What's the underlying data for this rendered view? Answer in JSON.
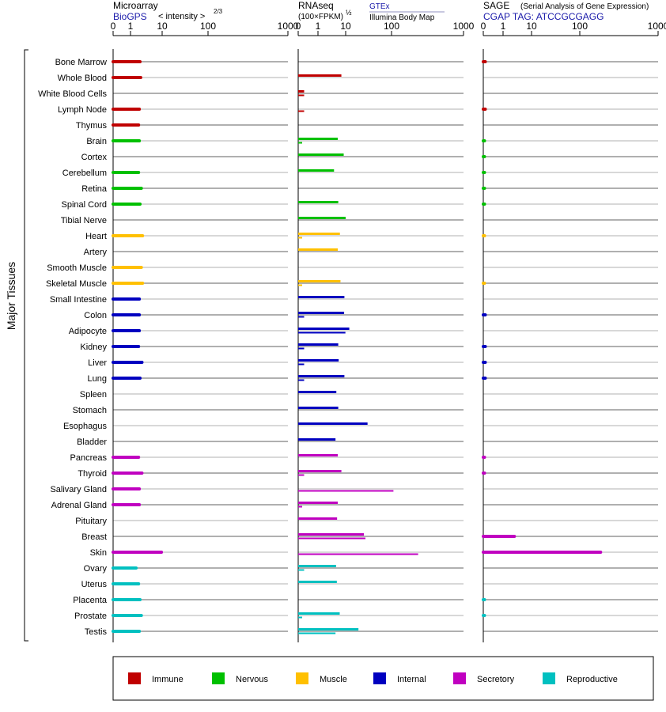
{
  "panels": [
    {
      "title": "Microarray",
      "subtitle": "BioGPS",
      "unit": "< intensity >",
      "unit_exp": "2/3",
      "x_ticks": [
        "0",
        "1",
        "10",
        "100",
        "1000"
      ]
    },
    {
      "title": "RNAseq",
      "unit": "(100×FPKM)",
      "unit_exp": "½",
      "source_top": "GTEx",
      "source_bottom": "Illumina Body Map",
      "x_ticks": [
        "0",
        "1",
        "10",
        "100",
        "1000"
      ]
    },
    {
      "title": "SAGE",
      "title_note": "(Serial Analysis of Gene Expression)",
      "subtitle": "CGAP TAG: ATCCGCGAGG",
      "x_ticks": [
        "0",
        "1",
        "10",
        "100",
        "1000"
      ]
    }
  ],
  "y_axis_label": "Major Tissues",
  "colors": {
    "Immune": "#c00000",
    "Nervous": "#00c000",
    "Muscle": "#ffc000",
    "Internal": "#0000c0",
    "Secretory": "#c000c0",
    "Reproductive": "#00c0c0"
  },
  "chart_data": {
    "type": "bar",
    "orientation": "horizontal",
    "x_scale": "log (0, 1, 10, 100, 1000)",
    "xlim": [
      0,
      1000
    ],
    "grid": true,
    "legend_position": "bottom",
    "legend": [
      "Immune",
      "Nervous",
      "Muscle",
      "Internal",
      "Secretory",
      "Reproductive"
    ],
    "categories": [
      "Bone Marrow",
      "Whole Blood",
      "White Blood Cells",
      "Lymph Node",
      "Thymus",
      "Brain",
      "Cortex",
      "Cerebellum",
      "Retina",
      "Spinal Cord",
      "Tibial Nerve",
      "Heart",
      "Artery",
      "Smooth Muscle",
      "Skeletal Muscle",
      "Small Intestine",
      "Colon",
      "Adipocyte",
      "Kidney",
      "Liver",
      "Lung",
      "Spleen",
      "Stomach",
      "Esophagus",
      "Bladder",
      "Pancreas",
      "Thyroid",
      "Salivary Gland",
      "Adrenal Gland",
      "Pituitary",
      "Breast",
      "Skin",
      "Ovary",
      "Uterus",
      "Placenta",
      "Prostate",
      "Testis"
    ],
    "groups": [
      "Immune",
      "Immune",
      "Immune",
      "Immune",
      "Immune",
      "Nervous",
      "Nervous",
      "Nervous",
      "Nervous",
      "Nervous",
      "Nervous",
      "Muscle",
      "Muscle",
      "Muscle",
      "Muscle",
      "Internal",
      "Internal",
      "Internal",
      "Internal",
      "Internal",
      "Internal",
      "Internal",
      "Internal",
      "Internal",
      "Internal",
      "Secretory",
      "Secretory",
      "Secretory",
      "Secretory",
      "Secretory",
      "Secretory",
      "Secretory",
      "Reproductive",
      "Reproductive",
      "Reproductive",
      "Reproductive",
      "Reproductive"
    ],
    "series": [
      {
        "name": "Microarray",
        "values": [
          2.0,
          2.1,
          0,
          1.9,
          1.8,
          1.9,
          0,
          1.8,
          2.2,
          2.0,
          0,
          2.4,
          0,
          2.2,
          2.4,
          1.9,
          1.9,
          1.9,
          1.8,
          2.3,
          2.0,
          0,
          0,
          0,
          0,
          1.8,
          2.3,
          1.9,
          1.9,
          0,
          0,
          9.5,
          1.5,
          1.8,
          2.0,
          2.2,
          1.9
        ]
      },
      {
        "name": "RNAseq (GTEx)",
        "values": [
          0,
          7.0,
          0.3,
          0,
          0,
          5.2,
          8.5,
          3.8,
          0,
          5.4,
          10,
          6.2,
          5.2,
          0,
          6.5,
          9.0,
          8.8,
          12,
          5.4,
          5.6,
          9.0,
          4.6,
          5.4,
          30,
          4.3,
          5.2,
          7.0,
          0,
          5.2,
          4.9,
          25,
          0,
          4.5,
          4.8,
          0,
          6.1,
          19
        ]
      },
      {
        "name": "RNAseq (Illumina Body Map)",
        "values": [
          0,
          0,
          0.3,
          0.3,
          0,
          0.2,
          0,
          0,
          0,
          0,
          0,
          0.2,
          0,
          0,
          0.2,
          0,
          0.3,
          9.8,
          0.3,
          0.3,
          0.3,
          0,
          0,
          0,
          0,
          0,
          0.3,
          110,
          0.2,
          0,
          27,
          380,
          0.3,
          0,
          0,
          0.2,
          4.3
        ]
      },
      {
        "name": "SAGE",
        "values": [
          0.1,
          0,
          0,
          0.1,
          0,
          0.05,
          0.05,
          0.05,
          0.05,
          0.05,
          0,
          0.03,
          0,
          0,
          0.03,
          0,
          0.1,
          0,
          0.1,
          0.1,
          0.1,
          0,
          0,
          0,
          0,
          0.05,
          0.05,
          0,
          0,
          0,
          2.5,
          270,
          0,
          0,
          0.05,
          0.05,
          0
        ]
      }
    ]
  }
}
